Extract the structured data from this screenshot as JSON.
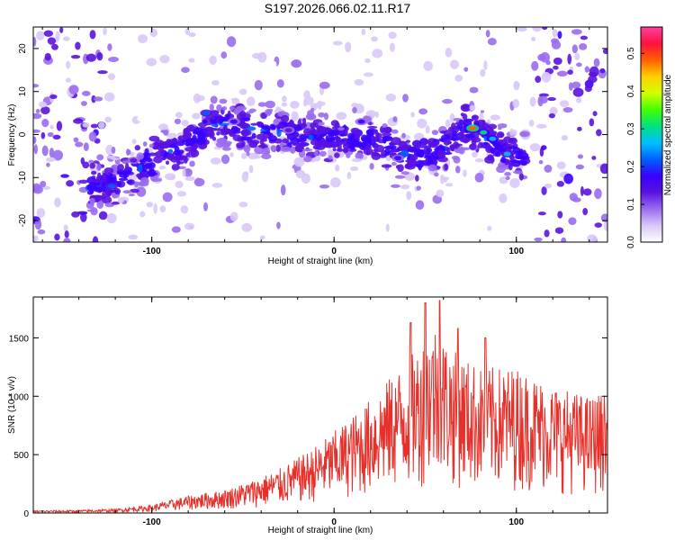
{
  "title": "S197.2026.066.02.11.R17",
  "chart_data": [
    {
      "type": "heatmap",
      "xlabel": "Height of straight line (km)",
      "ylabel": "Frequency (Hz)",
      "xlim": [
        -165,
        150
      ],
      "ylim": [
        -25,
        25
      ],
      "x_ticks": [
        -100,
        0,
        100
      ],
      "y_ticks": [
        -20,
        -10,
        0,
        10,
        20
      ],
      "x_tick_labels": [
        "-100",
        "0",
        "100"
      ],
      "y_tick_labels": [
        "-20",
        "-10",
        "0",
        "10",
        "20"
      ],
      "colorbar": {
        "label": "Normalized spectral amplitude",
        "range": [
          0,
          0.57
        ],
        "ticks": [
          0.0,
          0.1,
          0.2,
          0.3,
          0.4,
          0.5
        ],
        "tick_labels": [
          "0.0",
          "0.1",
          "0.2",
          "0.3",
          "0.4",
          "0.5"
        ],
        "colors": [
          "#ffffff",
          "#d8c8f8",
          "#9a6cf0",
          "#5a12e0",
          "#3a00ff",
          "#0060ff",
          "#00c0ff",
          "#00e080",
          "#40ff00",
          "#d0ff00",
          "#ffd000",
          "#ff6000",
          "#ff1040",
          "#ff40a0"
        ]
      },
      "ridge_frequency": {
        "x": [
          -125,
          -100,
          -75,
          -65,
          -40,
          -20,
          0,
          20,
          40,
          60,
          72,
          80,
          90,
          95
        ],
        "y": [
          -12,
          -6,
          -1,
          3,
          1,
          0,
          -1,
          -1,
          -5,
          -4,
          2,
          0,
          -2,
          -5
        ]
      },
      "hot_spots": [
        {
          "x": 76,
          "y": 1.5,
          "value": 0.5
        },
        {
          "x": 82,
          "y": 0.5,
          "value": 0.3
        },
        {
          "x": 87,
          "y": -1,
          "value": 0.27
        },
        {
          "x": 95,
          "y": -4.5,
          "value": 0.25
        },
        {
          "x": -122,
          "y": -12,
          "value": 0.22
        },
        {
          "x": -70,
          "y": 5,
          "value": 0.2
        },
        {
          "x": -55,
          "y": 3,
          "value": 0.18
        },
        {
          "x": 15,
          "y": 3,
          "value": 0.17
        },
        {
          "x": 35,
          "y": -5.5,
          "value": 0.16
        },
        {
          "x": -110,
          "y": -6,
          "value": 0.15
        },
        {
          "x": -25,
          "y": 1,
          "value": 0.15
        }
      ]
    },
    {
      "type": "line",
      "xlabel": "Height of straight line (km)",
      "ylabel": "SNR (10 * v/v)",
      "xlim": [
        -165,
        150
      ],
      "ylim": [
        0,
        1850
      ],
      "x_ticks": [
        -100,
        0,
        100
      ],
      "y_ticks": [
        0,
        500,
        1000,
        1500
      ],
      "x_tick_labels": [
        "-100",
        "0",
        "100"
      ],
      "y_tick_labels": [
        "0",
        "500",
        "1000",
        "1500"
      ],
      "series": [
        {
          "name": "SNR",
          "color": "#e8302a",
          "envelope_x": [
            -165,
            -140,
            -120,
            -100,
            -80,
            -60,
            -45,
            -30,
            -15,
            0,
            15,
            30,
            45,
            55,
            65,
            80,
            100,
            120,
            140,
            150
          ],
          "envelope_y": [
            20,
            25,
            35,
            70,
            150,
            200,
            280,
            380,
            520,
            700,
            900,
            1150,
            1400,
            1650,
            1400,
            1250,
            1250,
            1100,
            1000,
            1050
          ],
          "peaks": [
            {
              "x": 58,
              "y": 1820
            },
            {
              "x": 50,
              "y": 1800
            },
            {
              "x": 42,
              "y": 1630
            },
            {
              "x": 68,
              "y": 1580
            },
            {
              "x": 83,
              "y": 1500
            }
          ]
        }
      ]
    }
  ]
}
